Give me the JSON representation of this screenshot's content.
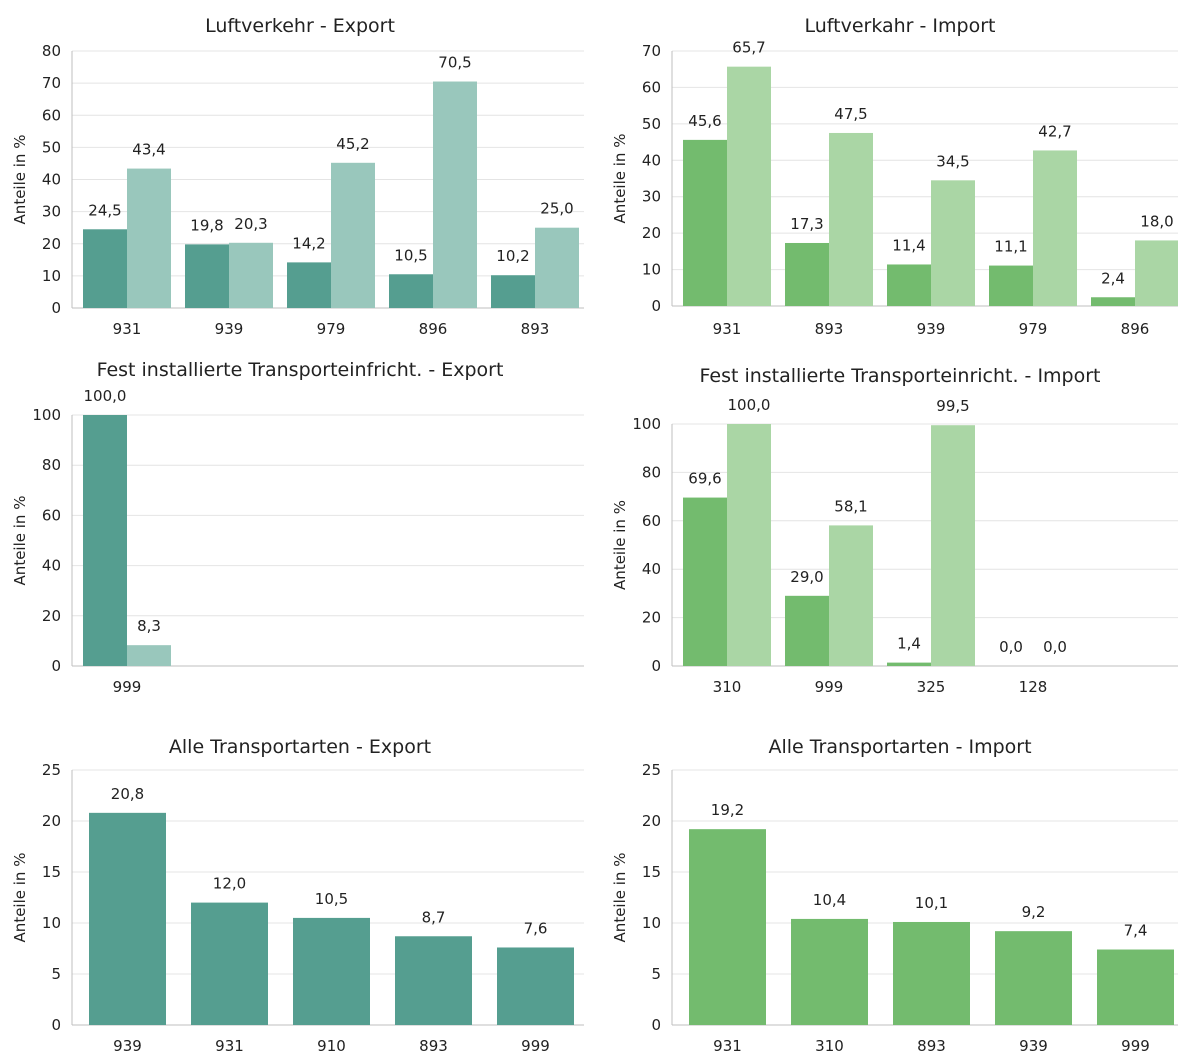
{
  "colors": {
    "export_dark": "#559E90",
    "export_light": "#99C7BC",
    "import_dark": "#73BB6E",
    "import_light": "#AAD6A5",
    "grid": "#E4E4E4",
    "axis": "#BFBFBF"
  },
  "chart_data": [
    {
      "id": "luft-export",
      "type": "bar",
      "title": "Luftverkehr - Export",
      "ylabel": "Anteile in %",
      "ylim": [
        0,
        80
      ],
      "yticks": [
        0,
        10,
        20,
        30,
        40,
        50,
        60,
        70,
        80
      ],
      "grid": true,
      "palette": "export",
      "categories": [
        "931",
        "939",
        "979",
        "896",
        "893"
      ],
      "series": [
        {
          "values": [
            24.5,
            19.8,
            14.2,
            10.5,
            10.2
          ],
          "labels": [
            "24,5",
            "19,8",
            "14,2",
            "10,5",
            "10,2"
          ]
        },
        {
          "values": [
            43.4,
            20.3,
            45.2,
            70.5,
            25.0
          ],
          "labels": [
            "43,4",
            "20,3",
            "45,2",
            "70,5",
            "25,0"
          ]
        }
      ]
    },
    {
      "id": "luft-import",
      "type": "bar",
      "title": "Luftverkahr - Import",
      "ylabel": "Anteile in %",
      "ylim": [
        0,
        70
      ],
      "yticks": [
        0,
        10,
        20,
        30,
        40,
        50,
        60,
        70
      ],
      "grid": true,
      "palette": "import",
      "categories": [
        "931",
        "893",
        "939",
        "979",
        "896"
      ],
      "series": [
        {
          "values": [
            45.6,
            17.3,
            11.4,
            11.1,
            2.4
          ],
          "labels": [
            "45,6",
            "17,3",
            "11,4",
            "11,1",
            "2,4"
          ]
        },
        {
          "values": [
            65.7,
            47.5,
            34.5,
            42.7,
            18.0
          ],
          "labels": [
            "65,7",
            "47,5",
            "34,5",
            "42,7",
            "18,0"
          ]
        }
      ]
    },
    {
      "id": "fest-export",
      "type": "bar",
      "title": "Fest installierte Transporteinfricht. - Export",
      "ylabel": "Anteile in %",
      "ylim": [
        0,
        100
      ],
      "yticks": [
        0,
        20,
        40,
        60,
        80,
        100
      ],
      "grid": true,
      "palette": "export",
      "categories": [
        "999"
      ],
      "series": [
        {
          "values": [
            100.0
          ],
          "labels": [
            "100,0"
          ]
        },
        {
          "values": [
            8.3
          ],
          "labels": [
            "8,3"
          ]
        }
      ]
    },
    {
      "id": "fest-import",
      "type": "bar",
      "title": "Fest installierte Transporteinricht. - Import",
      "ylabel": "Anteile in %",
      "ylim": [
        0,
        100
      ],
      "yticks": [
        0,
        20,
        40,
        60,
        80,
        100
      ],
      "grid": true,
      "palette": "import",
      "categories": [
        "310",
        "999",
        "325",
        "128"
      ],
      "series": [
        {
          "values": [
            69.6,
            29.0,
            1.4,
            0.0
          ],
          "labels": [
            "69,6",
            "29,0",
            "1,4",
            "0,0"
          ]
        },
        {
          "values": [
            100.0,
            58.1,
            99.5,
            0.0
          ],
          "labels": [
            "100,0",
            "58,1",
            "99,5",
            "0,0"
          ]
        }
      ]
    },
    {
      "id": "alle-export",
      "type": "bar",
      "title": "Alle Transportarten - Export",
      "ylabel": "Anteile in %",
      "ylim": [
        0,
        25
      ],
      "yticks": [
        0,
        5,
        10,
        15,
        20,
        25
      ],
      "grid": true,
      "palette": "export",
      "categories": [
        "939",
        "931",
        "910",
        "893",
        "999"
      ],
      "series": [
        {
          "values": [
            20.8,
            12.0,
            10.5,
            8.7,
            7.6
          ],
          "labels": [
            "20,8",
            "12,0",
            "10,5",
            "8,7",
            "7,6"
          ]
        }
      ]
    },
    {
      "id": "alle-import",
      "type": "bar",
      "title": "Alle Transportarten - Import",
      "ylabel": "Anteile in %",
      "ylim": [
        0,
        25
      ],
      "yticks": [
        0,
        5,
        10,
        15,
        20,
        25
      ],
      "grid": true,
      "palette": "import",
      "categories": [
        "931",
        "310",
        "893",
        "939",
        "999"
      ],
      "series": [
        {
          "values": [
            19.2,
            10.4,
            10.1,
            9.2,
            7.4
          ],
          "labels": [
            "19,2",
            "10,4",
            "10,1",
            "9,2",
            "7,4"
          ]
        }
      ]
    }
  ]
}
